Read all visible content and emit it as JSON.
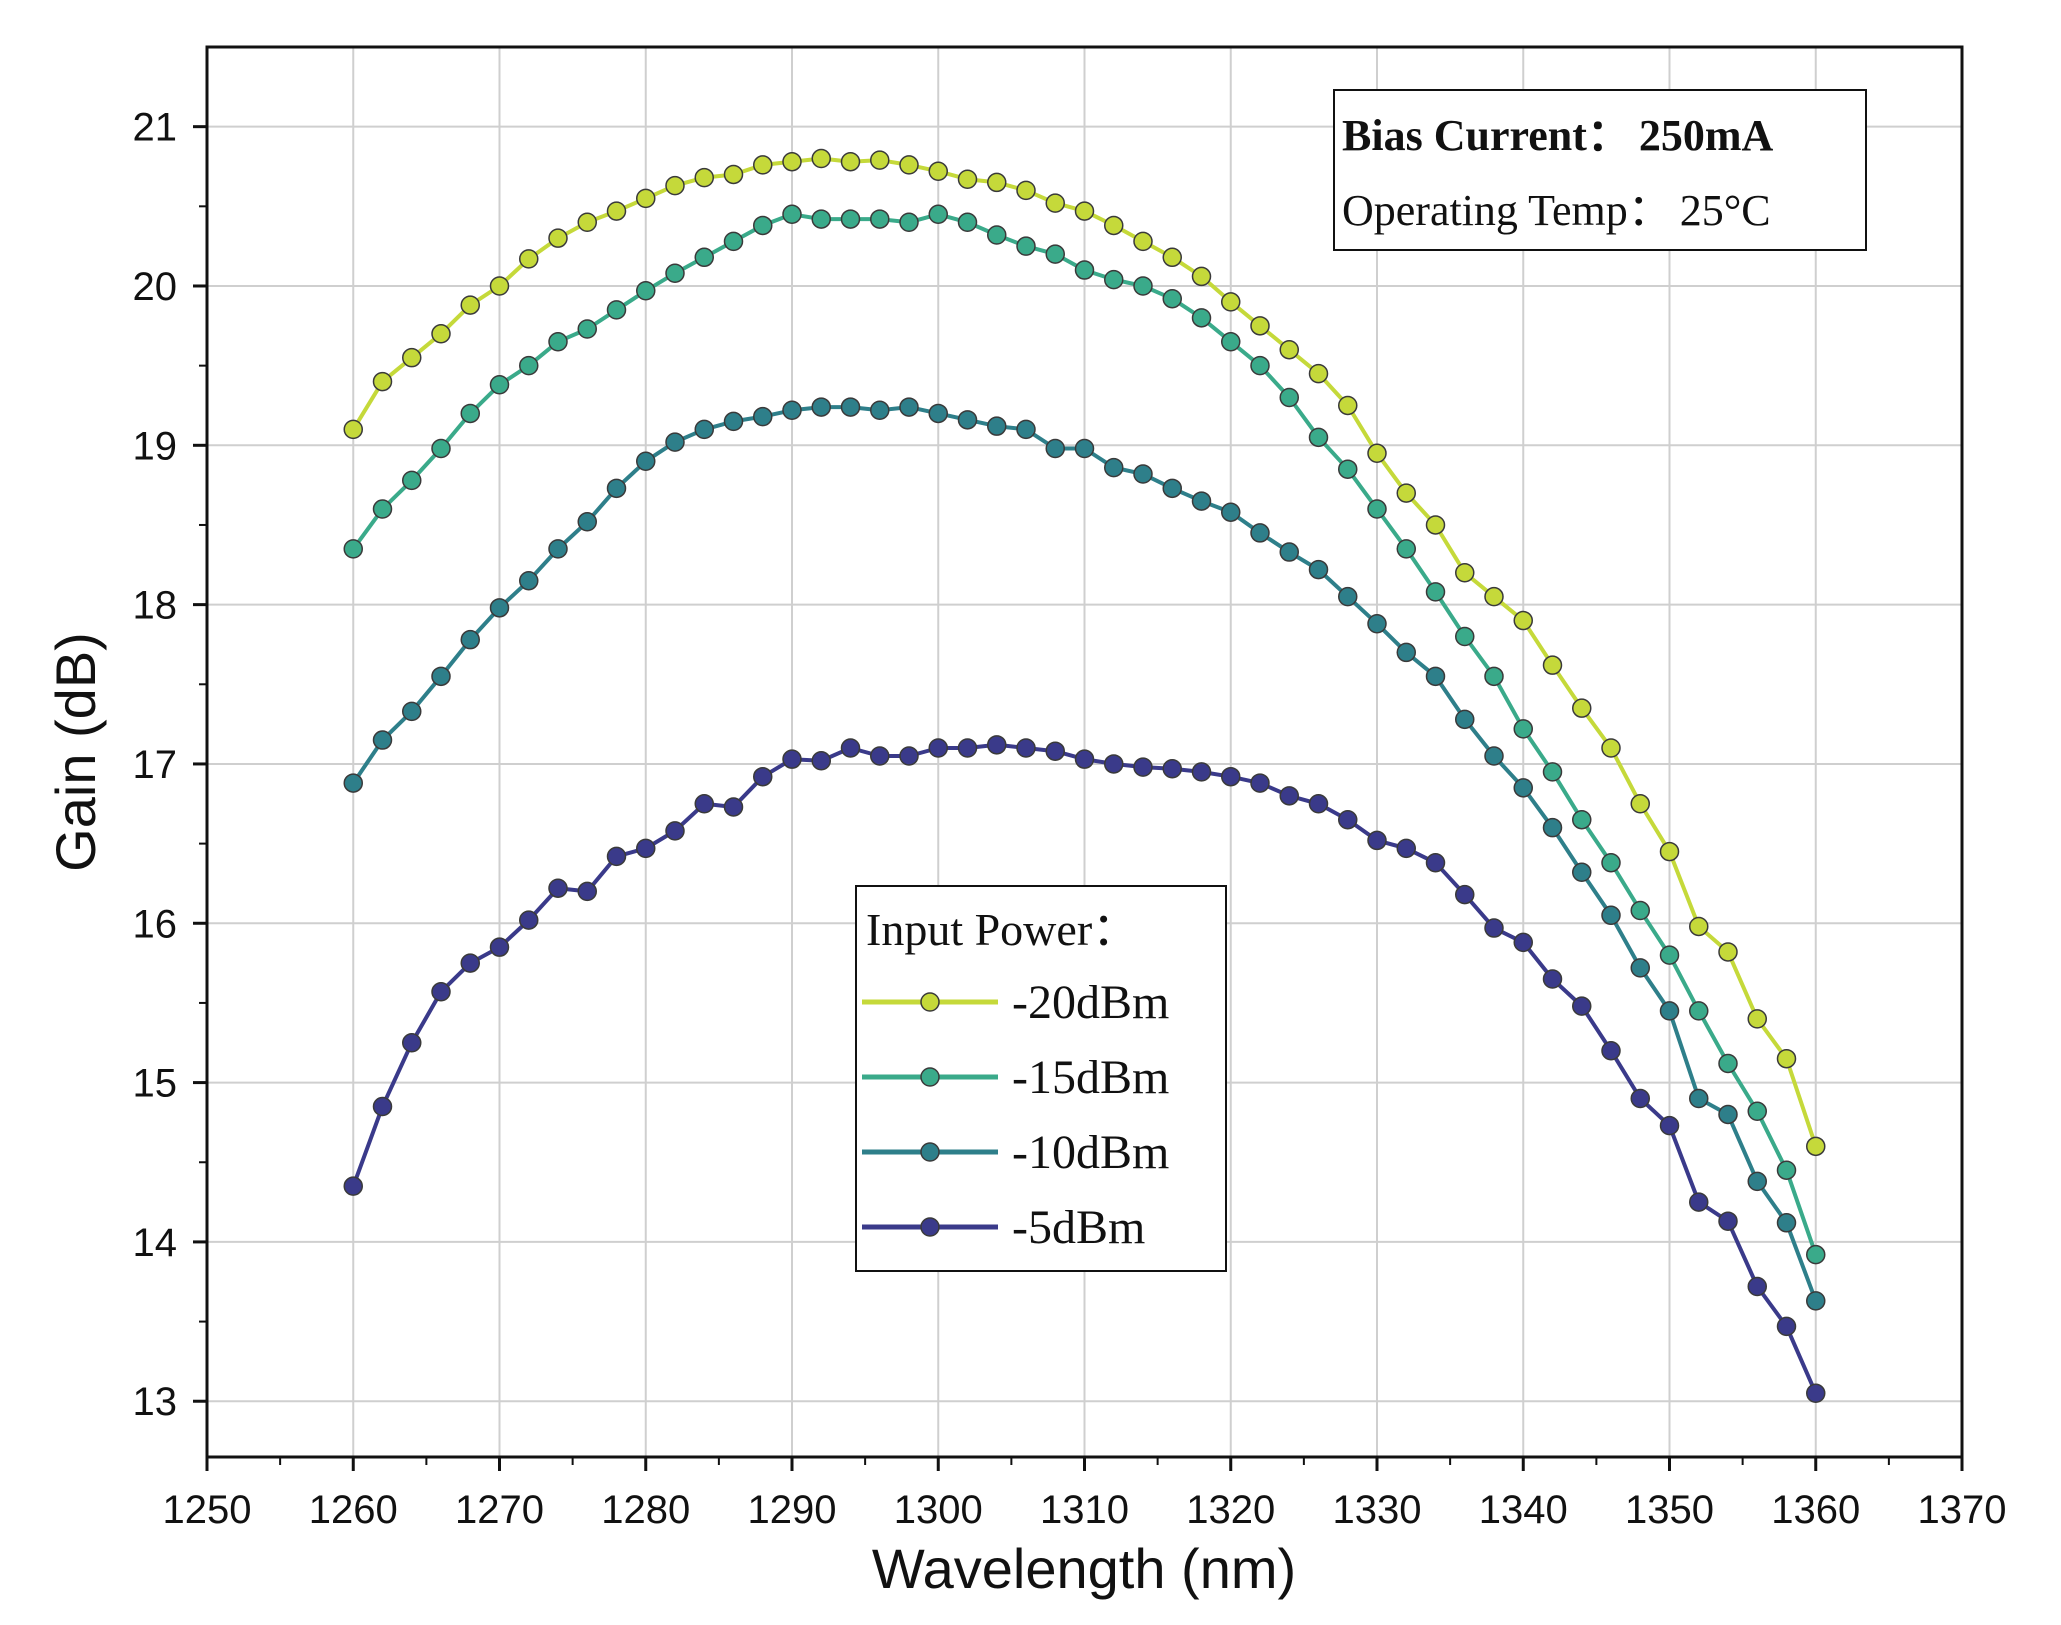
{
  "chart_data": {
    "type": "line",
    "xlabel": "Wavelength (nm)",
    "ylabel": "Gain (dB)",
    "xlim": [
      1250,
      1370
    ],
    "ylim": [
      12.65,
      21.5
    ],
    "x_ticks": [
      1250,
      1260,
      1270,
      1280,
      1290,
      1300,
      1310,
      1320,
      1330,
      1340,
      1350,
      1360,
      1370
    ],
    "y_ticks": [
      13,
      14,
      15,
      16,
      17,
      18,
      19,
      20,
      21
    ],
    "grid": true,
    "info_box": {
      "line1_label": "Bias Current：",
      "line1_value": "250mA",
      "line2_label": "Operating Temp：",
      "line2_value": "25°C"
    },
    "legend": {
      "title": "Input Power：",
      "position": "center-bottom"
    },
    "x": [
      1260,
      1262,
      1264,
      1266,
      1268,
      1270,
      1272,
      1274,
      1276,
      1278,
      1280,
      1282,
      1284,
      1286,
      1288,
      1290,
      1292,
      1294,
      1296,
      1298,
      1300,
      1302,
      1304,
      1306,
      1308,
      1310,
      1312,
      1314,
      1316,
      1318,
      1320,
      1322,
      1324,
      1326,
      1328,
      1330,
      1332,
      1334,
      1336,
      1338,
      1340,
      1342,
      1344,
      1346,
      1348,
      1350,
      1352,
      1354,
      1356,
      1358,
      1360
    ],
    "series": [
      {
        "name": "-20dBm",
        "color": "#c5d93a",
        "values": [
          19.1,
          19.4,
          19.55,
          19.7,
          19.88,
          20.0,
          20.17,
          20.3,
          20.4,
          20.47,
          20.55,
          20.63,
          20.68,
          20.7,
          20.76,
          20.78,
          20.8,
          20.78,
          20.79,
          20.76,
          20.72,
          20.67,
          20.65,
          20.6,
          20.52,
          20.47,
          20.38,
          20.28,
          20.18,
          20.06,
          19.9,
          19.75,
          19.6,
          19.45,
          19.25,
          18.95,
          18.7,
          18.5,
          18.2,
          18.05,
          17.9,
          17.62,
          17.35,
          17.1,
          16.75,
          16.45,
          15.98,
          15.82,
          15.4,
          15.15,
          14.6
        ]
      },
      {
        "name": "-15dBm",
        "color": "#3aaa8a",
        "values": [
          18.35,
          18.6,
          18.78,
          18.98,
          19.2,
          19.38,
          19.5,
          19.65,
          19.73,
          19.85,
          19.97,
          20.08,
          20.18,
          20.28,
          20.38,
          20.45,
          20.42,
          20.42,
          20.42,
          20.4,
          20.45,
          20.4,
          20.32,
          20.25,
          20.2,
          20.1,
          20.04,
          20.0,
          19.92,
          19.8,
          19.65,
          19.5,
          19.3,
          19.05,
          18.85,
          18.6,
          18.35,
          18.08,
          17.8,
          17.55,
          17.22,
          16.95,
          16.65,
          16.38,
          16.08,
          15.8,
          15.45,
          15.12,
          14.82,
          14.45,
          13.92
        ]
      },
      {
        "name": "-10dBm",
        "color": "#2e7f8a",
        "values": [
          16.88,
          17.15,
          17.33,
          17.55,
          17.78,
          17.98,
          18.15,
          18.35,
          18.52,
          18.73,
          18.9,
          19.02,
          19.1,
          19.15,
          19.18,
          19.22,
          19.24,
          19.24,
          19.22,
          19.24,
          19.2,
          19.16,
          19.12,
          19.1,
          18.98,
          18.98,
          18.86,
          18.82,
          18.73,
          18.65,
          18.58,
          18.45,
          18.33,
          18.22,
          18.05,
          17.88,
          17.7,
          17.55,
          17.28,
          17.05,
          16.85,
          16.6,
          16.32,
          16.05,
          15.72,
          15.45,
          14.9,
          14.8,
          14.38,
          14.12,
          13.63
        ]
      },
      {
        "name": "-5dBm",
        "color": "#3a3a8a",
        "values": [
          14.35,
          14.85,
          15.25,
          15.57,
          15.75,
          15.85,
          16.02,
          16.22,
          16.2,
          16.42,
          16.47,
          16.58,
          16.75,
          16.73,
          16.92,
          17.03,
          17.02,
          17.1,
          17.05,
          17.05,
          17.1,
          17.1,
          17.12,
          17.1,
          17.08,
          17.03,
          17.0,
          16.98,
          16.97,
          16.95,
          16.92,
          16.88,
          16.8,
          16.75,
          16.65,
          16.52,
          16.47,
          16.38,
          16.18,
          15.97,
          15.88,
          15.65,
          15.48,
          15.2,
          14.9,
          14.73,
          14.25,
          14.13,
          13.72,
          13.47,
          13.05
        ]
      }
    ]
  }
}
